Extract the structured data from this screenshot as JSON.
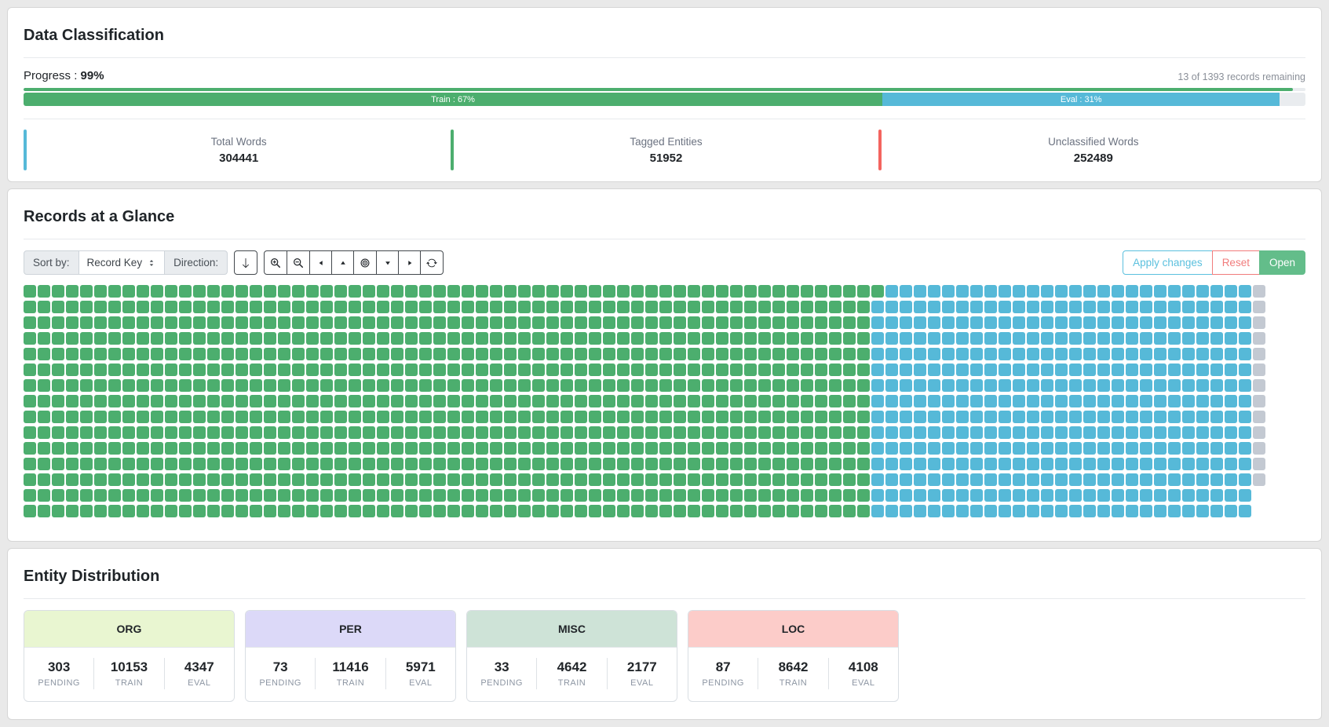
{
  "classification": {
    "title": "Data Classification",
    "progress_label": "Progress : ",
    "progress_value": "99%",
    "progress_pct": 99,
    "remaining_text": "13 of 1393 records remaining",
    "colors": {
      "train": "#4cae6e",
      "eval": "#56b9d8"
    },
    "bar": {
      "train_label": "Train : 67%",
      "train_pct": 67,
      "eval_label": "Eval : 31%",
      "eval_pct": 31
    },
    "stats": [
      {
        "label": "Total Words",
        "value": "304441",
        "accent": "#56b9d8"
      },
      {
        "label": "Tagged Entities",
        "value": "51952",
        "accent": "#4cae6e"
      },
      {
        "label": "Unclassified Words",
        "value": "252489",
        "accent": "#f4645f"
      }
    ]
  },
  "records": {
    "title": "Records at a Glance",
    "toolbar": {
      "sort_by_label": "Sort by:",
      "sort_value": "Record Key",
      "direction_label": "Direction:",
      "icon_buttons": [
        "arrow-down",
        "zoom-in",
        "zoom-out",
        "caret-left",
        "caret-up",
        "target",
        "caret-down",
        "caret-right",
        "refresh"
      ],
      "apply_label": "Apply changes",
      "apply_color": "#5bc0de",
      "reset_label": "Reset",
      "reset_color": "#f17c7c",
      "open_label": "Open",
      "open_bg": "#63bd8a",
      "open_color": "#ffffff"
    },
    "waffle": {
      "rows": 15,
      "cols": 88,
      "train_cols_first_row": 61,
      "train_cols": 60,
      "pending_cells": 13,
      "colors": {
        "train": "#4cae6e",
        "eval": "#56b9d8",
        "pending": "#c3c9d2"
      }
    }
  },
  "entities": {
    "title": "Entity Distribution",
    "cards": [
      {
        "name": "ORG",
        "header_bg": "#e9f6d1",
        "pending": "303",
        "train": "10153",
        "eval": "4347",
        "pending_label": "PENDING",
        "train_label": "TRAIN",
        "eval_label": "EVAL"
      },
      {
        "name": "PER",
        "header_bg": "#dcd9f8",
        "pending": "73",
        "train": "11416",
        "eval": "5971",
        "pending_label": "PENDING",
        "train_label": "TRAIN",
        "eval_label": "EVAL"
      },
      {
        "name": "MISC",
        "header_bg": "#cee3d7",
        "pending": "33",
        "train": "4642",
        "eval": "2177",
        "pending_label": "PENDING",
        "train_label": "TRAIN",
        "eval_label": "EVAL"
      },
      {
        "name": "LOC",
        "header_bg": "#fcccc9",
        "pending": "87",
        "train": "8642",
        "eval": "4108",
        "pending_label": "PENDING",
        "train_label": "TRAIN",
        "eval_label": "EVAL"
      }
    ]
  }
}
